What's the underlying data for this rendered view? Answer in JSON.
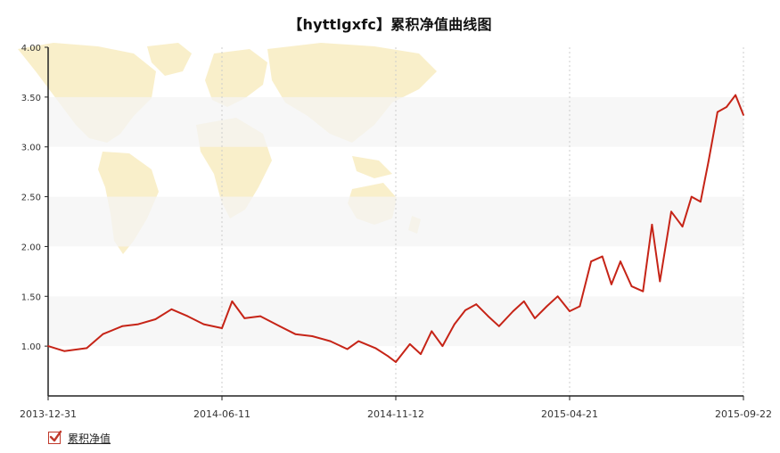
{
  "title": "【hyttlgxfc】累积净值曲线图",
  "colors": {
    "line": "#c62417",
    "band": "#f4f4f4",
    "axis": "#222222",
    "grid_vertical": "#cccccc",
    "map": "#f8ecc1",
    "checkbox": "#c0392b"
  },
  "legend": {
    "label": "累积净值",
    "checked": true
  },
  "chart_data": {
    "type": "line",
    "title": "【hyttlgxfc】累积净值曲线图",
    "xlabel": "",
    "ylabel": "",
    "ylim": [
      0.5,
      4.0
    ],
    "yticks": [
      "1.00",
      "1.50",
      "2.00",
      "2.50",
      "3.00",
      "3.50",
      "4.00"
    ],
    "xticks": [
      "2013-12-31",
      "2014-06-11",
      "2014-11-12",
      "2015-04-21",
      "2015-09-22"
    ],
    "grid": "alternating horizontal bands, dotted vertical lines at x ticks",
    "legend_position": "bottom-left",
    "series": [
      {
        "name": "累积净值",
        "x": [
          "2013-12-31",
          "2014-01-15",
          "2014-02-05",
          "2014-02-20",
          "2014-03-10",
          "2014-03-25",
          "2014-04-10",
          "2014-04-25",
          "2014-05-10",
          "2014-05-25",
          "2014-06-11",
          "2014-06-20",
          "2014-07-01",
          "2014-07-15",
          "2014-08-01",
          "2014-08-15",
          "2014-08-30",
          "2014-09-15",
          "2014-09-30",
          "2014-10-10",
          "2014-10-25",
          "2014-11-05",
          "2014-11-12",
          "2014-11-25",
          "2014-12-05",
          "2014-12-15",
          "2014-12-25",
          "2015-01-05",
          "2015-01-15",
          "2015-01-25",
          "2015-02-05",
          "2015-02-15",
          "2015-02-28",
          "2015-03-10",
          "2015-03-20",
          "2015-03-31",
          "2015-04-10",
          "2015-04-21",
          "2015-04-30",
          "2015-05-10",
          "2015-05-20",
          "2015-05-28",
          "2015-06-05",
          "2015-06-15",
          "2015-06-25",
          "2015-07-03",
          "2015-07-10",
          "2015-07-20",
          "2015-07-30",
          "2015-08-07",
          "2015-08-15",
          "2015-08-22",
          "2015-08-30",
          "2015-09-07",
          "2015-09-15",
          "2015-09-22"
        ],
        "values": [
          1.0,
          0.95,
          0.98,
          1.12,
          1.2,
          1.22,
          1.27,
          1.37,
          1.3,
          1.22,
          1.18,
          1.45,
          1.28,
          1.3,
          1.2,
          1.12,
          1.1,
          1.05,
          0.97,
          1.05,
          0.98,
          0.9,
          0.84,
          1.02,
          0.92,
          1.15,
          1.0,
          1.22,
          1.36,
          1.42,
          1.3,
          1.2,
          1.35,
          1.45,
          1.28,
          1.4,
          1.5,
          1.35,
          1.4,
          1.85,
          1.9,
          1.62,
          1.85,
          1.6,
          1.55,
          2.22,
          1.65,
          2.35,
          2.2,
          2.5,
          2.45,
          2.85,
          3.35,
          3.4,
          3.52,
          3.32
        ]
      }
    ]
  }
}
